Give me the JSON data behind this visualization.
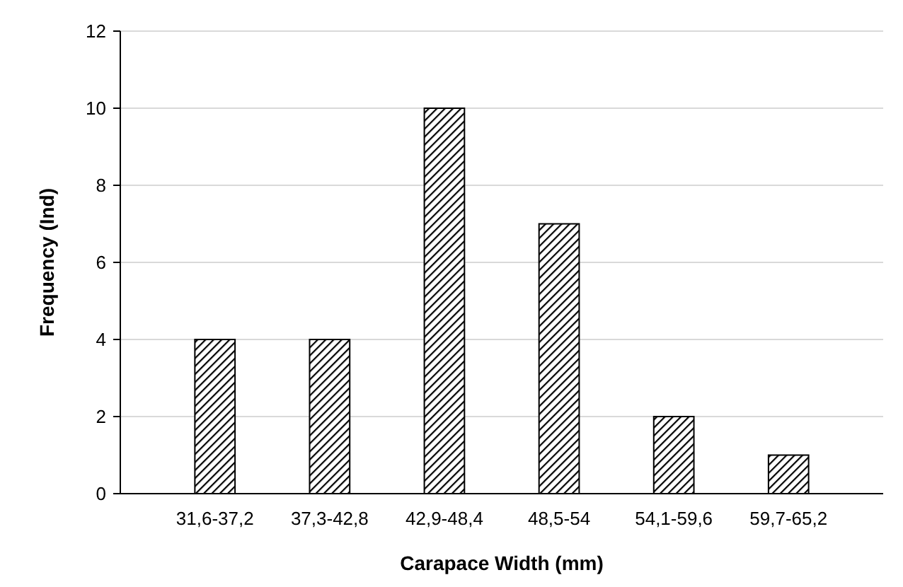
{
  "chart_data": {
    "type": "bar",
    "xlabel": "Carapace Width (mm)",
    "ylabel": "Frequency (Ind)",
    "categories": [
      "31,6-37,2",
      "37,3-42,8",
      "42,9-48,4",
      "48,5-54",
      "54,1-59,6",
      "59,7-65,2"
    ],
    "values": [
      4,
      4,
      10,
      7,
      2,
      1
    ],
    "color": "#000000",
    "ylim": [
      0,
      12
    ],
    "yticks": [
      0,
      2,
      4,
      6,
      8,
      10,
      12
    ],
    "grid": "y"
  }
}
